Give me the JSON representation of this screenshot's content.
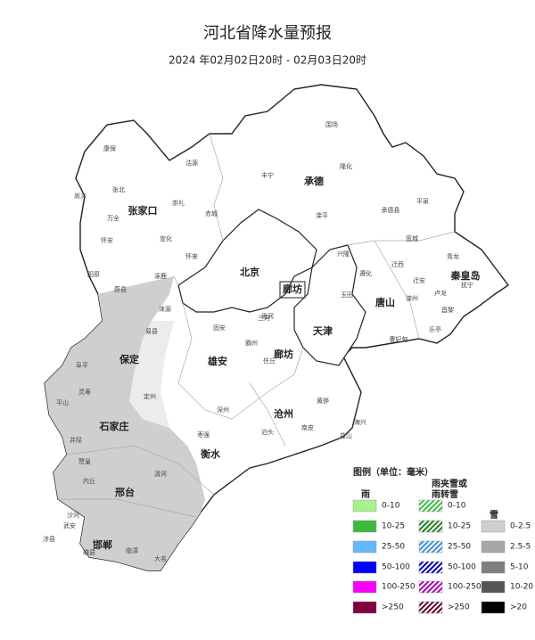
{
  "title": "河北省降水量预报",
  "subtitle": "2024 年02月02日20时 - 02月03日20时",
  "map": {
    "cities": [
      "张家口",
      "承德",
      "北京",
      "廊坊",
      "天津",
      "唐山",
      "秦皇岛",
      "保定",
      "雄安",
      "廊坊",
      "沧州",
      "衡水",
      "石家庄",
      "邢台",
      "邯郸"
    ],
    "counties": [
      "康保",
      "沽源",
      "丰宁",
      "围场",
      "隆化",
      "尚义",
      "张北",
      "万全",
      "崇礼",
      "赤城",
      "怀安",
      "宣化",
      "怀来",
      "阳原",
      "涿鹿",
      "蔚县",
      "滦平",
      "承德县",
      "平泉",
      "宽城",
      "兴隆",
      "迁西",
      "青龙",
      "遵化",
      "玉田",
      "迁安",
      "抚宁",
      "卢龙",
      "昌黎",
      "滦州",
      "乐亭",
      "曹妃甸",
      "黄骅",
      "海兴",
      "盐山",
      "南皮",
      "泊头",
      "阜平",
      "灵寿",
      "平山",
      "井陉",
      "赞皇",
      "内丘",
      "沙河",
      "武安",
      "涉县",
      "磁县",
      "临漳",
      "大名",
      "涞源",
      "易县",
      "定州",
      "深州",
      "枣强",
      "清河",
      "任丘",
      "霸州",
      "固安",
      "香河",
      "三河"
    ]
  },
  "legend": {
    "title": "图例（单位：毫米）",
    "groups": [
      {
        "name": [
          "雨"
        ],
        "pattern": "solid",
        "items": [
          {
            "label": "0-10",
            "color": "#a6f28f"
          },
          {
            "label": "10-25",
            "color": "#3dba3d"
          },
          {
            "label": "25-50",
            "color": "#61b8ff"
          },
          {
            "label": "50-100",
            "color": "#0000fe"
          },
          {
            "label": "100-250",
            "color": "#fa00fa"
          },
          {
            "label": ">250",
            "color": "#800040"
          }
        ]
      },
      {
        "name": [
          "雨夹雪或",
          "雨转雪"
        ],
        "pattern": "hatch",
        "items": [
          {
            "label": "0-10",
            "color": "#3dba3d"
          },
          {
            "label": "10-25",
            "color": "#1e7d1e"
          },
          {
            "label": "25-50",
            "color": "#3d8fd9"
          },
          {
            "label": "50-100",
            "color": "#0000b0"
          },
          {
            "label": "100-250",
            "color": "#b000b0"
          },
          {
            "label": ">250",
            "color": "#600030"
          }
        ]
      },
      {
        "name": [
          "雪"
        ],
        "pattern": "solid",
        "items": [
          {
            "label": "0-2.5",
            "color": "#cfcfcf"
          },
          {
            "label": "2.5-5",
            "color": "#a6a6a6"
          },
          {
            "label": "5-10",
            "color": "#7f7f7f"
          },
          {
            "label": "10-20",
            "color": "#555555"
          },
          {
            "label": ">20",
            "color": "#000000"
          }
        ]
      }
    ]
  }
}
